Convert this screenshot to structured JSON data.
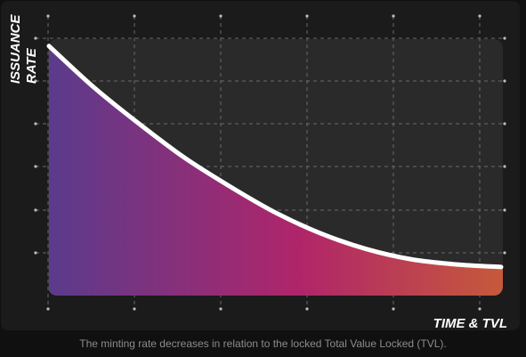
{
  "chart_data": {
    "type": "area",
    "ylabel_lines": [
      "ISSUANCE",
      "RATE"
    ],
    "xlabel": "TIME & TVL",
    "grid": true,
    "x": [
      0,
      0.1,
      0.2,
      0.3,
      0.4,
      0.5,
      0.6,
      0.7,
      0.8,
      0.9,
      1.0
    ],
    "y": [
      0.96,
      0.8,
      0.66,
      0.53,
      0.42,
      0.32,
      0.24,
      0.18,
      0.14,
      0.12,
      0.11
    ],
    "xlim": [
      0,
      1
    ],
    "ylim": [
      0,
      1
    ],
    "gradient_colors": [
      "#5b3b8c",
      "#b0256a",
      "#c65a3a"
    ],
    "line_color": "#ffffff"
  },
  "caption": "The minting rate decreases in relation to the locked Total Value Locked (TVL)."
}
